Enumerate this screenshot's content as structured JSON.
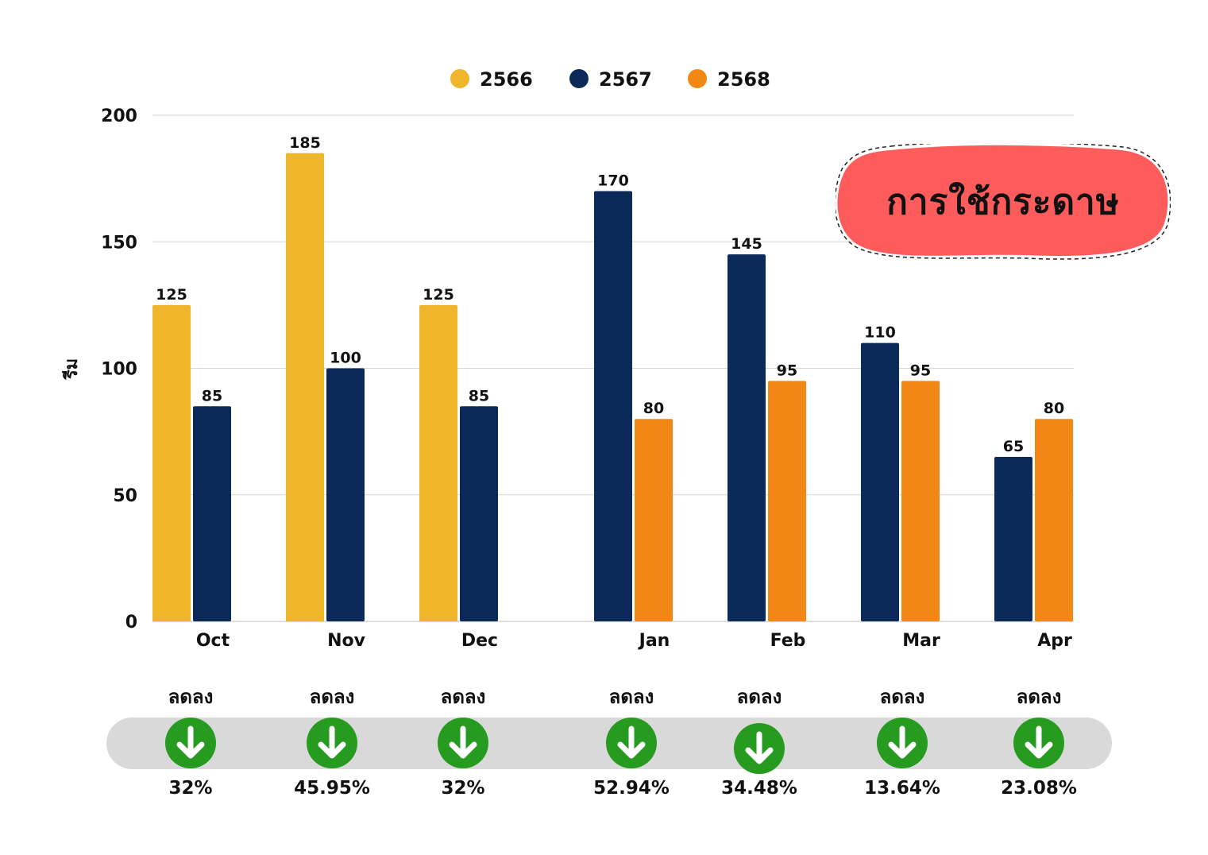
{
  "chart_data": {
    "type": "bar",
    "title": "การใช้กระดาษ",
    "ylabel": "รีม",
    "ylim": [
      0,
      200
    ],
    "yticks": [
      "0",
      "50",
      "100",
      "150",
      "200"
    ],
    "grid": true,
    "legend_position": "top-center",
    "categories": [
      "Oct",
      "Nov",
      "Dec",
      "Jan",
      "Feb",
      "Mar",
      "Apr"
    ],
    "series": [
      {
        "name": "2566",
        "color": "#efb52b",
        "values": [
          125,
          185,
          125,
          null,
          null,
          null,
          null
        ]
      },
      {
        "name": "2567",
        "color": "#0b2959",
        "values": [
          85,
          100,
          85,
          170,
          145,
          110,
          65
        ]
      },
      {
        "name": "2568",
        "color": "#f38716",
        "values": [
          null,
          null,
          null,
          80,
          95,
          95,
          80
        ]
      }
    ]
  },
  "summary": {
    "label": "ลดลง",
    "arrow_color": "#279a20",
    "percents": [
      "32%",
      "45.95%",
      "32%",
      "52.94%",
      "34.48%",
      "13.64%",
      "23.08%"
    ]
  }
}
